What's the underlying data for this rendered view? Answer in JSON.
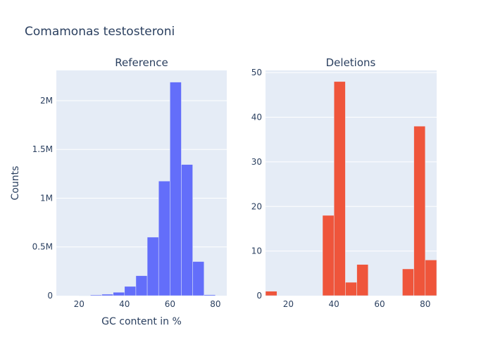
{
  "figure": {
    "title": "Comamonas testosteroni",
    "xlabel": "GC content in %",
    "ylabel": "Counts"
  },
  "chart_data": [
    {
      "type": "bar",
      "title": "Reference",
      "color": "#636efa",
      "xlim": [
        10,
        85
      ],
      "ylim": [
        0,
        2310000
      ],
      "xticks": [
        20,
        40,
        60,
        80
      ],
      "xtick_labels": [
        "20",
        "40",
        "60",
        "80"
      ],
      "yticks": [
        0,
        500000,
        1000000,
        1500000,
        2000000
      ],
      "ytick_labels": [
        "0",
        "0.5M",
        "1M",
        "1.5M",
        "2M"
      ],
      "bins": [
        {
          "x0": 20,
          "x1": 25,
          "value": 3000
        },
        {
          "x0": 25,
          "x1": 30,
          "value": 8000
        },
        {
          "x0": 30,
          "x1": 35,
          "value": 15000
        },
        {
          "x0": 35,
          "x1": 40,
          "value": 35000
        },
        {
          "x0": 40,
          "x1": 45,
          "value": 95000
        },
        {
          "x0": 45,
          "x1": 50,
          "value": 205000
        },
        {
          "x0": 50,
          "x1": 55,
          "value": 600000
        },
        {
          "x0": 55,
          "x1": 60,
          "value": 1175000
        },
        {
          "x0": 60,
          "x1": 65,
          "value": 2190000
        },
        {
          "x0": 65,
          "x1": 70,
          "value": 1345000
        },
        {
          "x0": 70,
          "x1": 75,
          "value": 350000
        },
        {
          "x0": 75,
          "x1": 80,
          "value": 10000
        }
      ]
    },
    {
      "type": "bar",
      "title": "Deletions",
      "color": "#ef553b",
      "xlim": [
        10,
        85
      ],
      "ylim": [
        0,
        50.5
      ],
      "xticks": [
        20,
        40,
        60,
        80
      ],
      "xtick_labels": [
        "20",
        "40",
        "60",
        "80"
      ],
      "yticks": [
        0,
        10,
        20,
        30,
        40,
        50
      ],
      "ytick_labels": [
        "0",
        "10",
        "20",
        "30",
        "40",
        "50"
      ],
      "bins": [
        {
          "x0": 10,
          "x1": 15,
          "value": 1
        },
        {
          "x0": 35,
          "x1": 40,
          "value": 18
        },
        {
          "x0": 40,
          "x1": 45,
          "value": 48
        },
        {
          "x0": 45,
          "x1": 50,
          "value": 3
        },
        {
          "x0": 50,
          "x1": 55,
          "value": 7
        },
        {
          "x0": 70,
          "x1": 75,
          "value": 6
        },
        {
          "x0": 75,
          "x1": 80,
          "value": 38
        },
        {
          "x0": 80,
          "x1": 85,
          "value": 8
        }
      ]
    }
  ]
}
